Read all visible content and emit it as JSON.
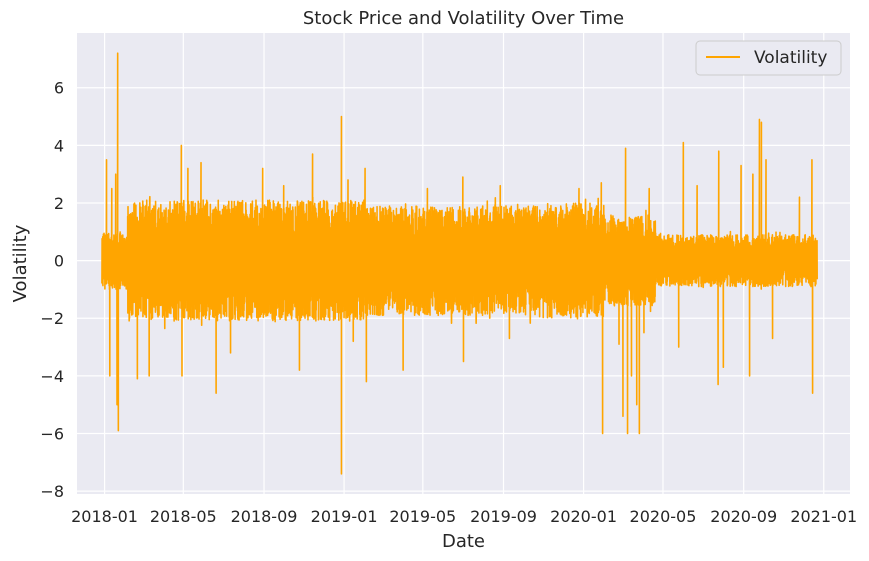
{
  "chart_data": {
    "type": "line",
    "title": "Stock Price and Volatility Over Time",
    "xlabel": "Date",
    "ylabel": "Volatility",
    "x_range": [
      "2017-11-20",
      "2021-02-10"
    ],
    "ylim": [
      -8.1,
      7.9
    ],
    "x_ticks": [
      "2018-01",
      "2018-05",
      "2018-09",
      "2019-01",
      "2019-05",
      "2019-09",
      "2020-01",
      "2020-05",
      "2020-09",
      "2021-01"
    ],
    "y_ticks": [
      -8,
      -6,
      -4,
      -2,
      0,
      2,
      4,
      6
    ],
    "grid": true,
    "legend": {
      "placement": "top-right",
      "entries": [
        "Volatility"
      ]
    },
    "series": [
      {
        "name": "Volatility",
        "color": "#ffa500",
        "x_start": "2017-12-28",
        "x_end": "2020-12-22",
        "envelope_segments": [
          {
            "from": "2017-12-28",
            "to": "2018-02-05",
            "amp": 1.0
          },
          {
            "from": "2018-02-05",
            "to": "2019-02-01",
            "amp": 2.1
          },
          {
            "from": "2019-02-01",
            "to": "2019-10-20",
            "amp": 1.9
          },
          {
            "from": "2019-10-20",
            "to": "2020-02-01",
            "amp": 2.0
          },
          {
            "from": "2020-02-01",
            "to": "2020-04-20",
            "amp": 1.6
          },
          {
            "from": "2020-04-20",
            "to": "2020-12-22",
            "amp": 0.9
          }
        ],
        "spikes": [
          {
            "x": "2018-01-04",
            "y": 3.5
          },
          {
            "x": "2018-01-09",
            "y": -4.0
          },
          {
            "x": "2018-01-12",
            "y": 2.5
          },
          {
            "x": "2018-01-18",
            "y": 3.0
          },
          {
            "x": "2018-01-20",
            "y": -5.0
          },
          {
            "x": "2018-01-21",
            "y": 7.2
          },
          {
            "x": "2018-01-22",
            "y": -5.9
          },
          {
            "x": "2018-02-20",
            "y": -4.1
          },
          {
            "x": "2018-03-10",
            "y": -4.0
          },
          {
            "x": "2018-04-28",
            "y": 4.0
          },
          {
            "x": "2018-04-29",
            "y": -4.0
          },
          {
            "x": "2018-05-08",
            "y": 3.2
          },
          {
            "x": "2018-05-28",
            "y": 3.4
          },
          {
            "x": "2018-06-20",
            "y": -4.6
          },
          {
            "x": "2018-07-12",
            "y": -3.2
          },
          {
            "x": "2018-08-30",
            "y": 3.2
          },
          {
            "x": "2018-10-01",
            "y": 2.6
          },
          {
            "x": "2018-10-25",
            "y": -3.8
          },
          {
            "x": "2018-11-14",
            "y": 3.7
          },
          {
            "x": "2018-12-28",
            "y": 5.0
          },
          {
            "x": "2018-12-28",
            "y": -7.4
          },
          {
            "x": "2019-01-07",
            "y": 2.8
          },
          {
            "x": "2019-01-15",
            "y": -2.8
          },
          {
            "x": "2019-02-02",
            "y": 3.2
          },
          {
            "x": "2019-02-04",
            "y": -4.2
          },
          {
            "x": "2019-04-01",
            "y": -3.8
          },
          {
            "x": "2019-05-08",
            "y": 2.5
          },
          {
            "x": "2019-07-01",
            "y": 2.9
          },
          {
            "x": "2019-07-02",
            "y": -3.5
          },
          {
            "x": "2019-08-27",
            "y": 2.6
          },
          {
            "x": "2019-09-10",
            "y": -2.7
          },
          {
            "x": "2019-12-25",
            "y": 2.5
          },
          {
            "x": "2020-01-28",
            "y": 2.7
          },
          {
            "x": "2020-01-30",
            "y": -6.0
          },
          {
            "x": "2020-02-24",
            "y": -2.9
          },
          {
            "x": "2020-03-05",
            "y": 3.9
          },
          {
            "x": "2020-03-01",
            "y": -5.4
          },
          {
            "x": "2020-03-08",
            "y": -6.0
          },
          {
            "x": "2020-03-14",
            "y": -4.0
          },
          {
            "x": "2020-03-22",
            "y": -5.0
          },
          {
            "x": "2020-03-26",
            "y": -6.0
          },
          {
            "x": "2020-04-02",
            "y": -2.5
          },
          {
            "x": "2020-04-10",
            "y": 2.5
          },
          {
            "x": "2020-05-25",
            "y": -3.0
          },
          {
            "x": "2020-06-01",
            "y": 4.1
          },
          {
            "x": "2020-06-22",
            "y": 2.6
          },
          {
            "x": "2020-07-24",
            "y": -4.3
          },
          {
            "x": "2020-07-25",
            "y": 3.8
          },
          {
            "x": "2020-08-01",
            "y": -3.7
          },
          {
            "x": "2020-08-28",
            "y": 3.3
          },
          {
            "x": "2020-09-10",
            "y": -4.0
          },
          {
            "x": "2020-09-15",
            "y": 3.0
          },
          {
            "x": "2020-09-25",
            "y": 4.9
          },
          {
            "x": "2020-09-28",
            "y": 4.8
          },
          {
            "x": "2020-10-05",
            "y": 3.5
          },
          {
            "x": "2020-10-15",
            "y": -2.7
          },
          {
            "x": "2020-11-25",
            "y": 2.2
          },
          {
            "x": "2020-12-14",
            "y": 3.5
          },
          {
            "x": "2020-12-15",
            "y": -4.6
          }
        ]
      }
    ]
  }
}
